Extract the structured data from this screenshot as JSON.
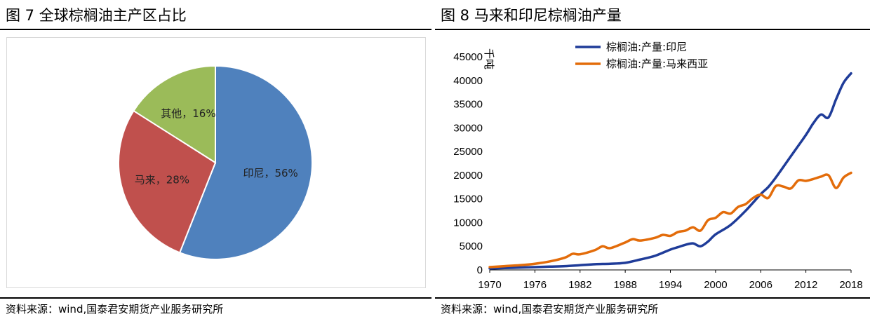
{
  "left": {
    "title": "图 7 全球棕榈油主产区占比",
    "source": "资料来源：wind,国泰君安期货产业服务研究所"
  },
  "right": {
    "title": "图 8 马来和印尼棕榈油产量",
    "source": "资料来源：wind,国泰君安期货产业服务研究所"
  },
  "colors": {
    "indonesia_pie": "#4f81bd",
    "malaysia_pie": "#c0504d",
    "other_pie": "#9bbb59",
    "indonesia_line": "#1f3c99",
    "malaysia_line": "#e36c0a"
  },
  "chart_data": [
    {
      "type": "pie",
      "title": "图 7 全球棕榈油主产区占比",
      "slices": [
        {
          "name": "印尼",
          "value": 56,
          "label": "印尼，56%"
        },
        {
          "name": "马来",
          "value": 28,
          "label": "马来，28%"
        },
        {
          "name": "其他",
          "value": 16,
          "label": "其他，16%"
        }
      ]
    },
    {
      "type": "line",
      "title": "图 8 马来和印尼棕榈油产量",
      "ylabel": "千吨",
      "ylim": [
        0,
        45000
      ],
      "yticks": [
        0,
        5000,
        10000,
        15000,
        20000,
        25000,
        30000,
        35000,
        40000,
        45000
      ],
      "xlim": [
        1970,
        2018
      ],
      "xticks": [
        1970,
        1976,
        1982,
        1988,
        1994,
        2000,
        2006,
        2012,
        2018
      ],
      "legend": "top",
      "series": [
        {
          "name": "棕榈油:产量:印尼",
          "x": [
            1970,
            1972,
            1974,
            1976,
            1978,
            1980,
            1982,
            1984,
            1986,
            1988,
            1990,
            1992,
            1994,
            1995,
            1996,
            1997,
            1998,
            1999,
            2000,
            2002,
            2004,
            2006,
            2007,
            2008,
            2010,
            2012,
            2013,
            2014,
            2015,
            2016,
            2017,
            2018
          ],
          "values": [
            300,
            400,
            500,
            600,
            700,
            800,
            1000,
            1200,
            1300,
            1500,
            2200,
            3000,
            4300,
            4800,
            5300,
            5600,
            5000,
            6000,
            7500,
            9500,
            12500,
            16000,
            17500,
            19500,
            24000,
            28500,
            31000,
            32800,
            32200,
            36000,
            39500,
            41500
          ]
        },
        {
          "name": "棕榈油:产量:马来西亚",
          "x": [
            1970,
            1972,
            1974,
            1976,
            1978,
            1980,
            1981,
            1982,
            1984,
            1985,
            1986,
            1988,
            1989,
            1990,
            1992,
            1993,
            1994,
            1995,
            1996,
            1997,
            1998,
            1999,
            2000,
            2001,
            2002,
            2003,
            2004,
            2005,
            2006,
            2007,
            2008,
            2009,
            2010,
            2011,
            2012,
            2013,
            2014,
            2015,
            2016,
            2017,
            2018
          ],
          "values": [
            600,
            800,
            1000,
            1300,
            1800,
            2600,
            3400,
            3300,
            4200,
            5000,
            4600,
            5800,
            6500,
            6200,
            6800,
            7400,
            7200,
            8000,
            8300,
            9000,
            8300,
            10500,
            11000,
            12200,
            11900,
            13300,
            13900,
            15200,
            15900,
            15200,
            17700,
            17600,
            17200,
            18900,
            18800,
            19200,
            19700,
            20000,
            17300,
            19500,
            20500
          ]
        }
      ]
    }
  ]
}
